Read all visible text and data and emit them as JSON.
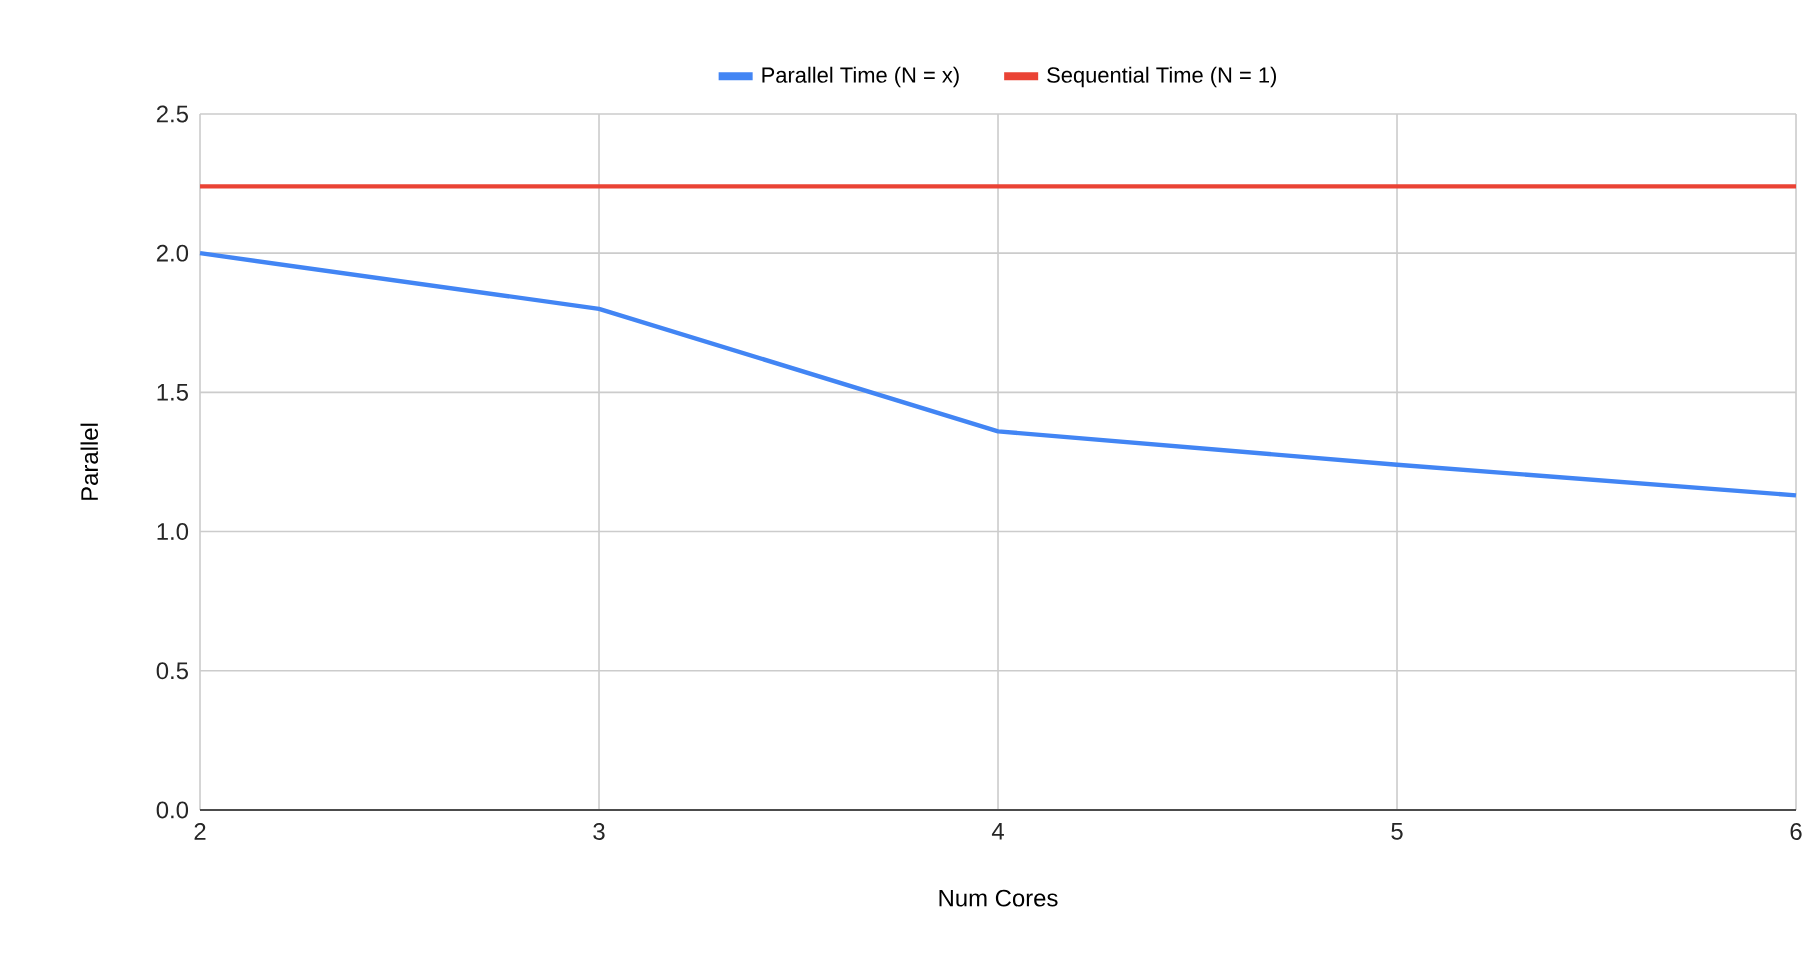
{
  "chart_data": {
    "type": "line",
    "xlabel": "Num Cores",
    "ylabel": "Parallel",
    "x": [
      2,
      3,
      4,
      5,
      6
    ],
    "series": [
      {
        "name": "Parallel Time (N = x)",
        "color": "#4285f4",
        "values": [
          2.0,
          1.8,
          1.36,
          1.24,
          1.13
        ]
      },
      {
        "name": "Sequential Time (N = 1)",
        "color": "#ea4335",
        "values": [
          2.24,
          2.24,
          2.24,
          2.24,
          2.24
        ]
      }
    ],
    "xlim": [
      2,
      6
    ],
    "ylim": [
      0,
      2.5
    ],
    "xticks": [
      2,
      3,
      4,
      5,
      6
    ],
    "yticks": [
      {
        "value": 0,
        "label": "0.0"
      },
      {
        "value": 0.5,
        "label": "0.5"
      },
      {
        "value": 1,
        "label": "1.0"
      },
      {
        "value": 1.5,
        "label": "1.5"
      },
      {
        "value": 2,
        "label": "2.0"
      },
      {
        "value": 2.5,
        "label": "2.5"
      }
    ],
    "grid": true,
    "legend": "top",
    "marker": "none",
    "line_style": "solid"
  }
}
